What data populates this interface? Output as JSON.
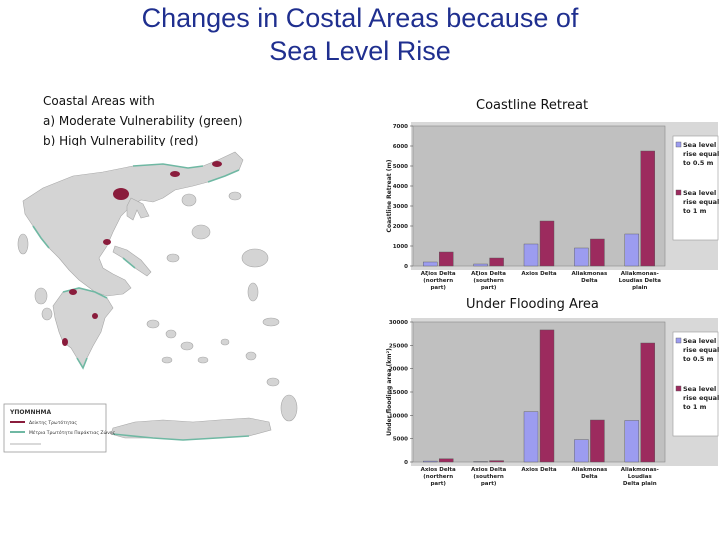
{
  "title_line1": "Changes in Costal Areas because of",
  "title_line2": "Sea Level Rise",
  "map": {
    "caption_line1": "Coastal Areas with",
    "caption_line2": "a) Moderate Vulnerability (green)",
    "caption_line3": "b) High Vulnerability (red)",
    "legend_title": "ΥΠΟΜΝΗΜΑ",
    "legend_item1": "Δείκτης Τρωτότητας",
    "legend_item2": "Μέτρια Τρωτότητα Παράκτιας Ζώνης",
    "colors": {
      "land": "#d4d4d4",
      "moderate": "#6fb8a3",
      "high": "#8a1c3c"
    }
  },
  "colors": {
    "series1": "#9c9cf0",
    "series2": "#9c2b5e",
    "plot_bg": "#c0c0c0"
  },
  "chart_data": [
    {
      "type": "bar",
      "title": "Coastline Retreat",
      "ylabel": "Coastline Retreat (m)",
      "xlabel": "",
      "ylim": [
        0,
        7000
      ],
      "yticks": [
        0,
        1000,
        2000,
        3000,
        4000,
        5000,
        6000,
        7000
      ],
      "yticks_labels": [
        "0",
        "1000",
        "2000",
        "3000",
        "4000",
        "5000",
        "6000",
        "7000"
      ],
      "categories": [
        "Axios Delta (northern part)",
        "Axios Delta (southern part)",
        "Axios Delta",
        "Aliakmonas Delta",
        "Aliakmonas-Loudias Delta plain"
      ],
      "category_lines": [
        [
          "Aξios Delta",
          "(northern",
          "part)"
        ],
        [
          "Aξios Delta",
          "(southern",
          "part)"
        ],
        [
          "Axios Delta"
        ],
        [
          "Aliakmonas",
          "Delta"
        ],
        [
          "Aliakmonas-",
          "Loudias Delta",
          "plain"
        ]
      ],
      "series": [
        {
          "name": "Sea level rise equal to 0.5 m",
          "legend_lines": [
            "Sea level",
            "rise equal",
            "to 0.5 m"
          ],
          "values": [
            200,
            100,
            1100,
            900,
            1600
          ]
        },
        {
          "name": "Sea level rise equal to 1 m",
          "legend_lines": [
            "Sea level",
            "rise equal",
            "to 1 m"
          ],
          "values": [
            700,
            400,
            2250,
            1350,
            5750
          ]
        }
      ],
      "grid": false,
      "legend": "right"
    },
    {
      "type": "bar",
      "title": "Under Flooding Area",
      "ylabel": "Under flooding area (km²)",
      "xlabel": "",
      "ylim": [
        0,
        30000
      ],
      "yticks": [
        0,
        5000,
        10000,
        15000,
        20000,
        25000,
        30000
      ],
      "yticks_labels": [
        "0",
        "5000",
        "10000",
        "15000",
        "20000",
        "25000",
        "30000"
      ],
      "categories": [
        "Axios Delta (northern part)",
        "Axios Delta (southern part)",
        "Axios Delta",
        "Aliakmonas Delta",
        "Aliakmonas-Loudias Delta plain"
      ],
      "category_lines": [
        [
          "Axios Delta",
          "(northern",
          "part)"
        ],
        [
          "Axios Delta",
          "(southern",
          "part)"
        ],
        [
          "Axios Delta"
        ],
        [
          "Aliakmonas",
          "Delta"
        ],
        [
          "Aliakmonas-",
          "Loudias",
          "Delta plain"
        ]
      ],
      "series": [
        {
          "name": "Sea level rise equal to 0.5 m",
          "legend_lines": [
            "Sea level",
            "rise equal",
            "to 0.5 m"
          ],
          "values": [
            200,
            100,
            10800,
            4800,
            8900
          ]
        },
        {
          "name": "Sea level rise equal to 1 m",
          "legend_lines": [
            "Sea level",
            "rise equal",
            "to 1 m"
          ],
          "values": [
            700,
            300,
            28300,
            9000,
            25500
          ]
        }
      ],
      "grid": false,
      "legend": "right"
    }
  ]
}
